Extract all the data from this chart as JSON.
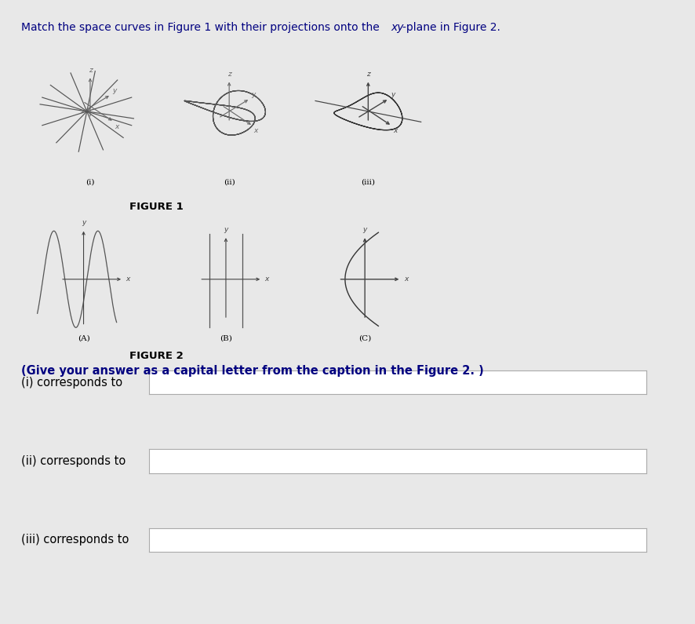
{
  "title_part1": "Match the space curves in Figure 1 with their projections onto the ",
  "title_xy": "xy",
  "title_part2": "-plane in Figure 2.",
  "fig1_label": "FIGURE 1",
  "fig2_label": "FIGURE 2",
  "instruction": "(Give your answer as a capital letter from the caption in the Figure 2. )",
  "answer_labels": [
    "(i) corresponds to",
    "(ii) corresponds to",
    "(iii) corresponds to"
  ],
  "bg_color": "#e8e8e8",
  "white": "#ffffff",
  "text_color": "#000000",
  "curve_color": "#555555",
  "axis_color": "#444444",
  "title_color": "#000080",
  "instr_color": "#000080"
}
